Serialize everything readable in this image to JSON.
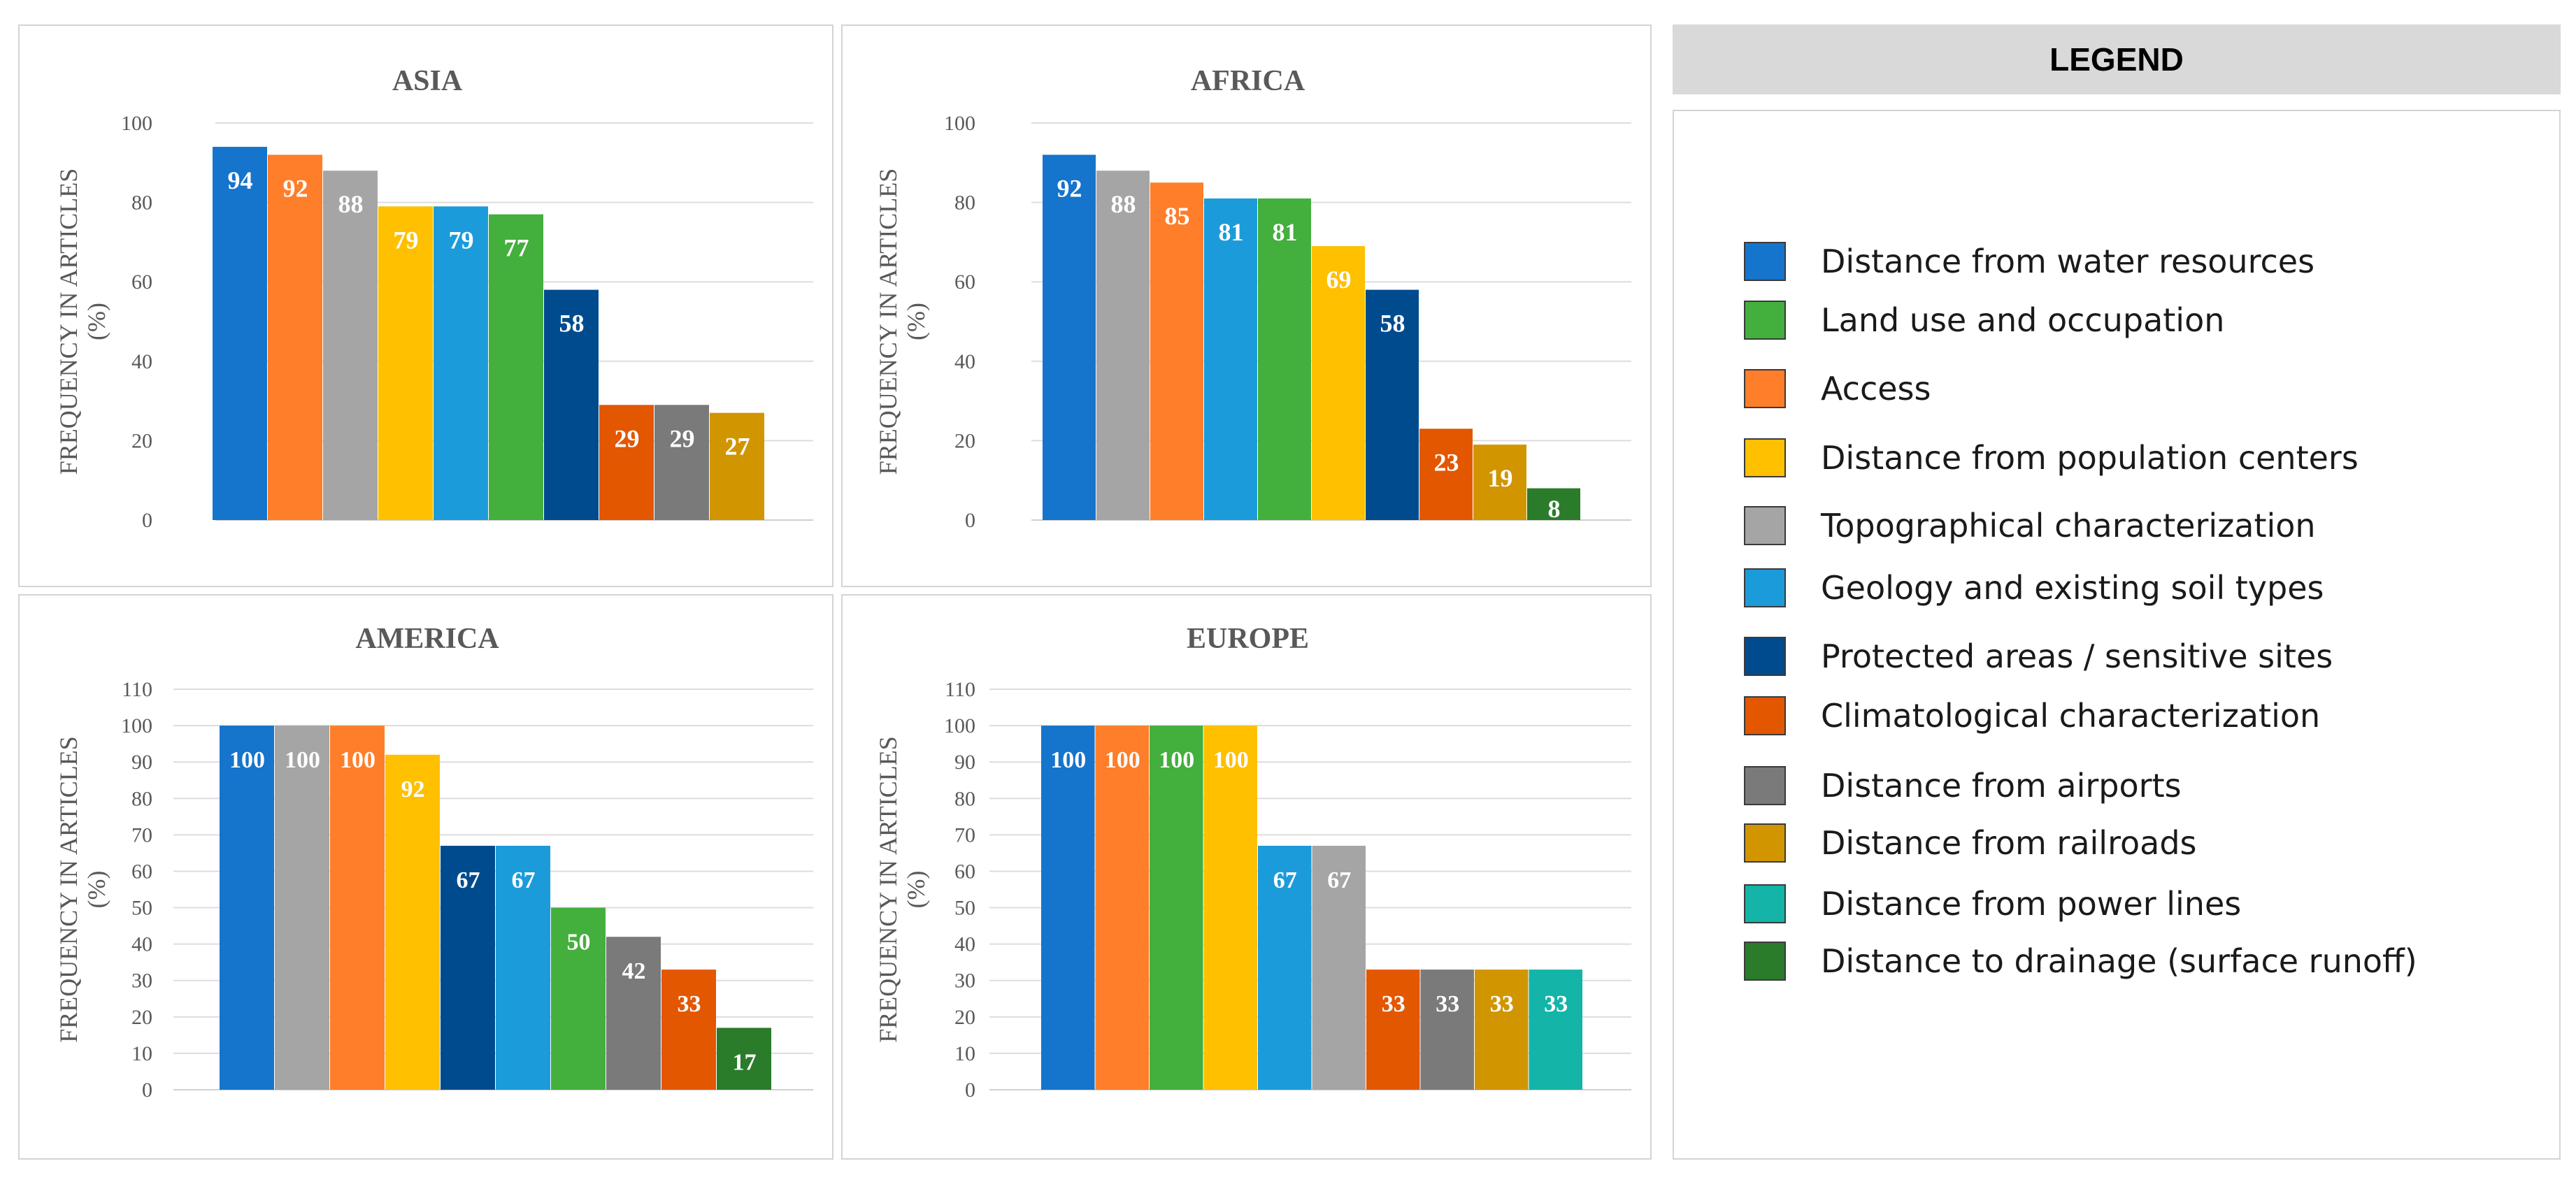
{
  "colors": {
    "water": "#1574CC",
    "land": "#43AF3C",
    "access": "#FE7E2A",
    "population": "#FFC000",
    "topo": "#A5A5A5",
    "geology": "#1C9BDB",
    "protected": "#004B8D",
    "climate": "#E25700",
    "airports": "#7A7A7A",
    "railroads": "#D19500",
    "power": "#14B4A8",
    "drainage": "#2A7B2A"
  },
  "legend": {
    "title": "LEGEND",
    "items": [
      {
        "key": "water",
        "label": "Distance from water resources"
      },
      {
        "key": "land",
        "label": "Land use and occupation"
      },
      {
        "key": "access",
        "label": "Access"
      },
      {
        "key": "population",
        "label": "Distance from population centers"
      },
      {
        "key": "topo",
        "label": "Topographical characterization"
      },
      {
        "key": "geology",
        "label": "Geology and existing soil types"
      },
      {
        "key": "protected",
        "label": "Protected areas / sensitive sites"
      },
      {
        "key": "climate",
        "label": "Climatological characterization"
      },
      {
        "key": "airports",
        "label": "Distance from airports"
      },
      {
        "key": "railroads",
        "label": "Distance from railroads"
      },
      {
        "key": "power",
        "label": "Distance from power lines"
      },
      {
        "key": "drainage",
        "label": "Distance to drainage (surface runoff)"
      }
    ]
  },
  "chart_data": [
    {
      "id": "asia",
      "type": "bar",
      "title": "ASIA",
      "ylabel": "FREQUENCY IN ARTICLES (%)",
      "ylim": [
        0,
        100
      ],
      "yticks": [
        0,
        20,
        40,
        60,
        80,
        100
      ],
      "bars": [
        {
          "key": "water",
          "value": 94,
          "label": "94"
        },
        {
          "key": "access",
          "value": 92,
          "label": "92"
        },
        {
          "key": "topo",
          "value": 88,
          "label": "88"
        },
        {
          "key": "population",
          "value": 79,
          "label": "79"
        },
        {
          "key": "geology",
          "value": 79,
          "label": "79"
        },
        {
          "key": "land",
          "value": 77,
          "label": "77"
        },
        {
          "key": "protected",
          "value": 58,
          "label": "58"
        },
        {
          "key": "climate",
          "value": 29,
          "label": "29"
        },
        {
          "key": "airports",
          "value": 29,
          "label": "29"
        },
        {
          "key": "railroads",
          "value": 27,
          "label": "27"
        }
      ]
    },
    {
      "id": "africa",
      "type": "bar",
      "title": "AFRICA",
      "ylabel": "FREQUENCY IN ARTICLES (%)",
      "ylim": [
        0,
        100
      ],
      "yticks": [
        0,
        20,
        40,
        60,
        80,
        100
      ],
      "bars": [
        {
          "key": "water",
          "value": 92,
          "label": "92"
        },
        {
          "key": "topo",
          "value": 88,
          "label": "88"
        },
        {
          "key": "access",
          "value": 85,
          "label": "85"
        },
        {
          "key": "geology",
          "value": 81,
          "label": "81"
        },
        {
          "key": "land",
          "value": 81,
          "label": "81"
        },
        {
          "key": "population",
          "value": 69,
          "label": "69"
        },
        {
          "key": "protected",
          "value": 58,
          "label": "58"
        },
        {
          "key": "climate",
          "value": 23,
          "label": "23"
        },
        {
          "key": "railroads",
          "value": 19,
          "label": "19"
        },
        {
          "key": "drainage",
          "value": 8,
          "label": "8"
        }
      ]
    },
    {
      "id": "america",
      "type": "bar",
      "title": "AMERICA",
      "ylabel": "FREQUENCY IN ARTICLES (%)",
      "ylim": [
        0,
        110
      ],
      "yticks": [
        0,
        10,
        20,
        30,
        40,
        50,
        60,
        70,
        80,
        90,
        100,
        110
      ],
      "bars": [
        {
          "key": "water",
          "value": 100,
          "label": "100"
        },
        {
          "key": "topo",
          "value": 100,
          "label": "100"
        },
        {
          "key": "access",
          "value": 100,
          "label": "100"
        },
        {
          "key": "population",
          "value": 92,
          "label": "92"
        },
        {
          "key": "protected",
          "value": 67,
          "label": "67"
        },
        {
          "key": "geology",
          "value": 67,
          "label": "67"
        },
        {
          "key": "land",
          "value": 50,
          "label": "50"
        },
        {
          "key": "airports",
          "value": 42,
          "label": "42"
        },
        {
          "key": "climate",
          "value": 33,
          "label": "33"
        },
        {
          "key": "drainage",
          "value": 17,
          "label": "17"
        }
      ]
    },
    {
      "id": "europe",
      "type": "bar",
      "title": "EUROPE",
      "ylabel": "FREQUENCY IN ARTICLES (%)",
      "ylim": [
        0,
        110
      ],
      "yticks": [
        0,
        10,
        20,
        30,
        40,
        50,
        60,
        70,
        80,
        90,
        100,
        110
      ],
      "bars": [
        {
          "key": "water",
          "value": 100,
          "label": "100"
        },
        {
          "key": "access",
          "value": 100,
          "label": "100"
        },
        {
          "key": "land",
          "value": 100,
          "label": "100"
        },
        {
          "key": "population",
          "value": 100,
          "label": "100"
        },
        {
          "key": "geology",
          "value": 67,
          "label": "67"
        },
        {
          "key": "topo",
          "value": 67,
          "label": "67"
        },
        {
          "key": "climate",
          "value": 33,
          "label": "33"
        },
        {
          "key": "airports",
          "value": 33,
          "label": "33"
        },
        {
          "key": "railroads",
          "value": 33,
          "label": "33"
        },
        {
          "key": "power",
          "value": 33,
          "label": "33"
        }
      ]
    }
  ]
}
